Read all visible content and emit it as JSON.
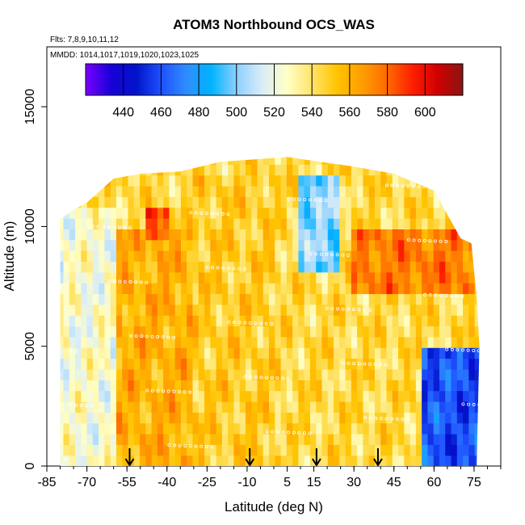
{
  "chart_data": {
    "type": "heatmap",
    "title": "ATOM3 Northbound OCS_WAS",
    "flights_note": "Flts: 7,8,9,10,11,12",
    "dates_note": "MMDD: 1014,1017,1019,1020,1023,1025",
    "xlabel": "Latitude (deg N)",
    "ylabel": "Altitude (m)",
    "xlim": [
      -85,
      85
    ],
    "ylim": [
      0,
      17500
    ],
    "x_tick_labels": [
      "-85",
      "-70",
      "-55",
      "-40",
      "-25",
      "-10",
      "5",
      "15",
      "30",
      "45",
      "60",
      "75"
    ],
    "x_ticks": [
      -85,
      -70,
      -55,
      -40,
      -25,
      -10,
      5,
      15,
      30,
      45,
      60,
      75
    ],
    "y_tick_labels": [
      "0",
      "5000",
      "10000",
      "15000"
    ],
    "y_ticks": [
      0,
      5000,
      10000,
      15000
    ],
    "colorbar": {
      "range": [
        420,
        620
      ],
      "tick_labels": [
        "440",
        "460",
        "480",
        "500",
        "520",
        "540",
        "560",
        "580",
        "600"
      ],
      "tick_values": [
        440,
        460,
        480,
        500,
        520,
        540,
        560,
        580,
        600
      ],
      "colors": [
        "#7a00ff",
        "#1a00d8",
        "#0014c8",
        "#1e50ff",
        "#2f8cff",
        "#00b4ff",
        "#8cd0ff",
        "#d8ecf8",
        "#ffffc8",
        "#ffe46a",
        "#ffc400",
        "#ff9e00",
        "#ff6a00",
        "#ff1e00",
        "#d00000",
        "#8a1414"
      ]
    },
    "arrow_latitudes": [
      -54,
      -9,
      16,
      39
    ],
    "altitude_envelope": [
      {
        "lat": -80,
        "top": 10300
      },
      {
        "lat": -75,
        "top": 10700
      },
      {
        "lat": -70,
        "top": 11000
      },
      {
        "lat": -65,
        "top": 11500
      },
      {
        "lat": -60,
        "top": 12000
      },
      {
        "lat": -50,
        "top": 12200
      },
      {
        "lat": -35,
        "top": 12300
      },
      {
        "lat": -20,
        "top": 12700
      },
      {
        "lat": 5,
        "top": 12900
      },
      {
        "lat": 30,
        "top": 12500
      },
      {
        "lat": 45,
        "top": 12200
      },
      {
        "lat": 60,
        "top": 11500
      },
      {
        "lat": 65,
        "top": 10500
      },
      {
        "lat": 70,
        "top": 9500
      },
      {
        "lat": 74,
        "top": 9300
      },
      {
        "lat": 76,
        "top": 7000
      },
      {
        "lat": 77,
        "top": 5000
      },
      {
        "lat": 76,
        "top": 200
      }
    ],
    "regions": [
      {
        "latitude_range": [
          -80,
          -60
        ],
        "altitude_range": [
          0,
          11000
        ],
        "approx_OCS": 525,
        "note": "light blue / pale yellow"
      },
      {
        "latitude_range": [
          -60,
          -30
        ],
        "altitude_range": [
          0,
          10000
        ],
        "approx_OCS": 560,
        "note": "yellow-orange"
      },
      {
        "latitude_range": [
          -47,
          -40
        ],
        "altitude_range": [
          9500,
          11000
        ],
        "approx_OCS": 590,
        "note": "red maximum"
      },
      {
        "latitude_range": [
          -30,
          0
        ],
        "altitude_range": [
          0,
          12000
        ],
        "approx_OCS": 550,
        "note": "yellow"
      },
      {
        "latitude_range": [
          10,
          25
        ],
        "altitude_range": [
          8000,
          12000
        ],
        "approx_OCS": 500,
        "note": "blue column"
      },
      {
        "latitude_range": [
          30,
          75
        ],
        "altitude_range": [
          7000,
          10000
        ],
        "approx_OCS": 575,
        "note": "orange upper band"
      },
      {
        "latitude_range": [
          55,
          77
        ],
        "altitude_range": [
          0,
          5000
        ],
        "approx_OCS": 460,
        "note": "deep blue minimum"
      }
    ]
  }
}
